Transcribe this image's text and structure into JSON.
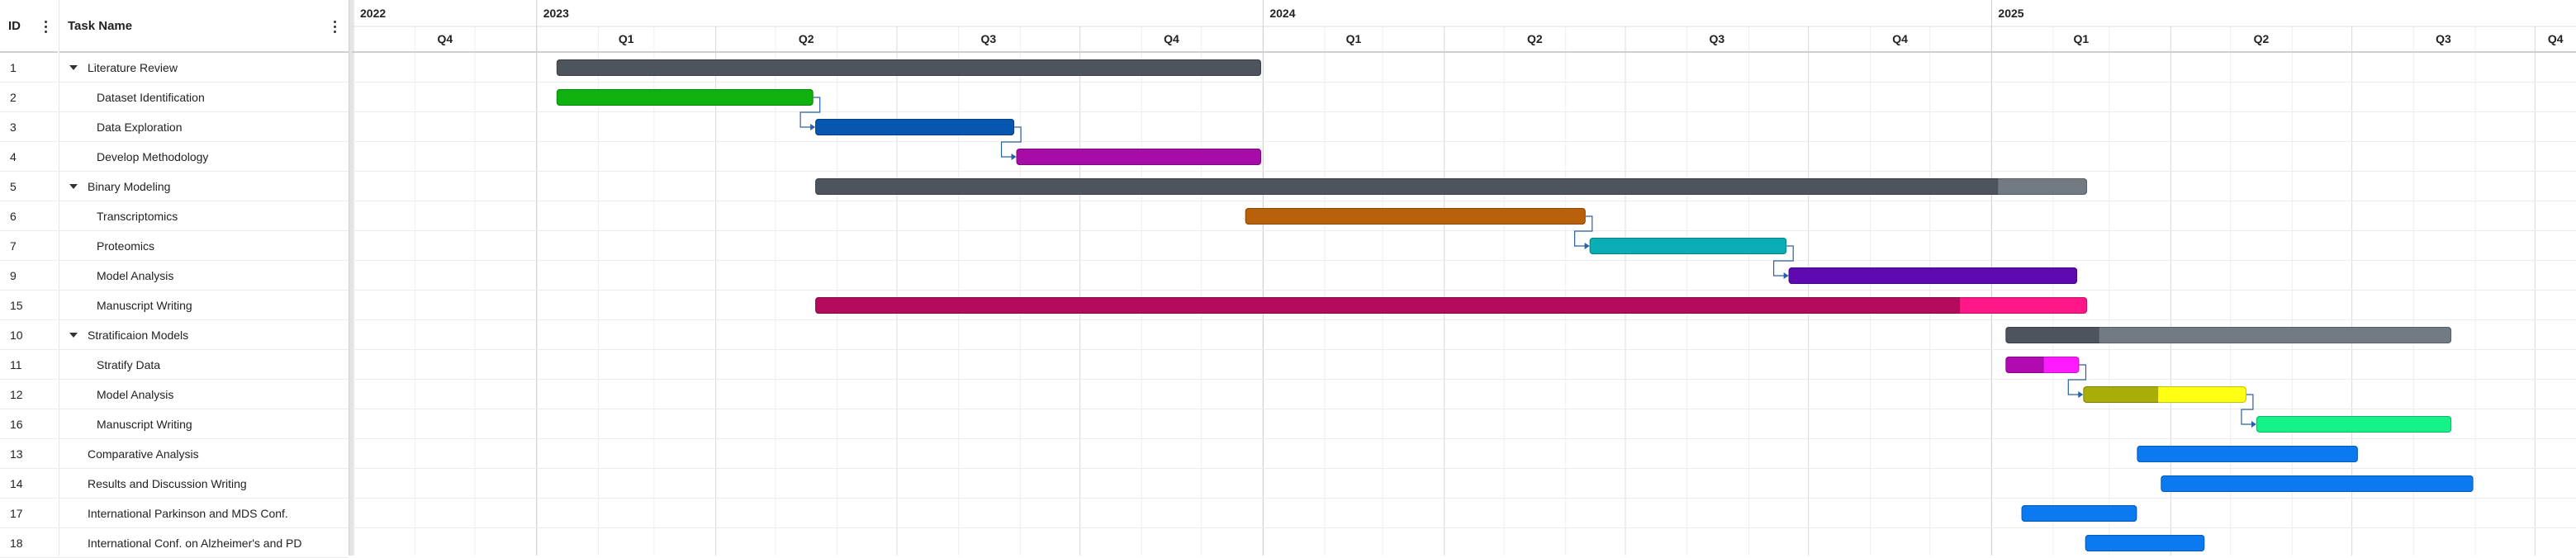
{
  "grid": {
    "id_header": "ID",
    "name_header": "Task Name",
    "rows": [
      {
        "id": "1",
        "name": "Literature Review",
        "level": 0,
        "expand": true
      },
      {
        "id": "2",
        "name": "Dataset Identification",
        "level": 1,
        "expand": false
      },
      {
        "id": "3",
        "name": "Data Exploration",
        "level": 1,
        "expand": false
      },
      {
        "id": "4",
        "name": "Develop Methodology",
        "level": 1,
        "expand": false
      },
      {
        "id": "5",
        "name": "Binary Modeling",
        "level": 0,
        "expand": true
      },
      {
        "id": "6",
        "name": "Transcriptomics",
        "level": 1,
        "expand": false
      },
      {
        "id": "7",
        "name": "Proteomics",
        "level": 1,
        "expand": false
      },
      {
        "id": "9",
        "name": "Model Analysis",
        "level": 1,
        "expand": false
      },
      {
        "id": "15",
        "name": "Manuscript Writing",
        "level": 1,
        "expand": false
      },
      {
        "id": "10",
        "name": "Stratificaion Models",
        "level": 0,
        "expand": true
      },
      {
        "id": "11",
        "name": "Stratify Data",
        "level": 1,
        "expand": false
      },
      {
        "id": "12",
        "name": "Model Analysis",
        "level": 1,
        "expand": false
      },
      {
        "id": "16",
        "name": "Manuscript Writing",
        "level": 1,
        "expand": false
      },
      {
        "id": "13",
        "name": "Comparative Analysis",
        "level": 0,
        "expand": false
      },
      {
        "id": "14",
        "name": "Results and Discussion Writing",
        "level": 0,
        "expand": false
      },
      {
        "id": "17",
        "name": "International Parkinson and MDS Conf.",
        "level": 0,
        "expand": false
      },
      {
        "id": "18",
        "name": "International Conf. on Alzheimer's and PD",
        "level": 0,
        "expand": false
      }
    ]
  },
  "timeline": {
    "start": "2022-10-01",
    "years": [
      {
        "label": "2022",
        "start": "2022-10-01",
        "end": "2023-01-01"
      },
      {
        "label": "2023",
        "start": "2023-01-01",
        "end": "2024-01-01"
      },
      {
        "label": "2024",
        "start": "2024-01-01",
        "end": "2025-01-01"
      },
      {
        "label": "2025",
        "start": "2025-01-01",
        "end": "2025-12-31"
      }
    ],
    "quarters": [
      {
        "label": "Q4",
        "start": "2022-10-01",
        "end": "2023-01-01"
      },
      {
        "label": "Q1",
        "start": "2023-01-01",
        "end": "2023-04-01"
      },
      {
        "label": "Q2",
        "start": "2023-04-01",
        "end": "2023-07-01"
      },
      {
        "label": "Q3",
        "start": "2023-07-01",
        "end": "2023-10-01"
      },
      {
        "label": "Q4",
        "start": "2023-10-01",
        "end": "2024-01-01"
      },
      {
        "label": "Q1",
        "start": "2024-01-01",
        "end": "2024-04-01"
      },
      {
        "label": "Q2",
        "start": "2024-04-01",
        "end": "2024-07-01"
      },
      {
        "label": "Q3",
        "start": "2024-07-01",
        "end": "2024-10-01"
      },
      {
        "label": "Q4",
        "start": "2024-10-01",
        "end": "2025-01-01"
      },
      {
        "label": "Q1",
        "start": "2025-01-01",
        "end": "2025-04-01"
      },
      {
        "label": "Q2",
        "start": "2025-04-01",
        "end": "2025-07-01"
      },
      {
        "label": "Q3",
        "start": "2025-07-01",
        "end": "2025-10-01"
      },
      {
        "label": "Q4",
        "start": "2025-10-01",
        "end": "2025-12-31"
      }
    ]
  },
  "bars": [
    {
      "row": 0,
      "start": "2023-01-11",
      "end": "2023-12-31",
      "color": "#4d545c",
      "progress": 1
    },
    {
      "row": 1,
      "start": "2023-01-11",
      "end": "2023-05-20",
      "color": "#0fb10f",
      "progress": 1
    },
    {
      "row": 2,
      "start": "2023-05-21",
      "end": "2023-08-29",
      "color": "#0756b0",
      "progress": 1
    },
    {
      "row": 3,
      "start": "2023-08-30",
      "end": "2023-12-31",
      "color": "#a80ca8",
      "progress": 1
    },
    {
      "row": 4,
      "start": "2023-05-21",
      "end": "2025-02-18",
      "color": "#4d545c",
      "light": "#737b82",
      "progress": 0.93
    },
    {
      "row": 5,
      "start": "2023-12-23",
      "end": "2024-06-11",
      "color": "#b8600a",
      "progress": 1
    },
    {
      "row": 6,
      "start": "2024-06-13",
      "end": "2024-09-20",
      "color": "#0aadb3",
      "progress": 1
    },
    {
      "row": 7,
      "start": "2024-09-21",
      "end": "2025-02-13",
      "color": "#5f0ab0",
      "progress": 1
    },
    {
      "row": 8,
      "start": "2023-05-21",
      "end": "2025-02-18",
      "color": "#b30a5c",
      "light": "#ff1787",
      "progress": 0.9
    },
    {
      "row": 9,
      "start": "2025-01-08",
      "end": "2025-08-20",
      "color": "#4d545c",
      "light": "#737b82",
      "progress": 0.21
    },
    {
      "row": 10,
      "start": "2025-01-08",
      "end": "2025-02-14",
      "color": "#b00ab0",
      "light": "#ff1bff",
      "progress": 0.52
    },
    {
      "row": 11,
      "start": "2025-02-16",
      "end": "2025-05-09",
      "color": "#a8ad09",
      "light": "#ffff14",
      "progress": 0.46
    },
    {
      "row": 12,
      "start": "2025-05-14",
      "end": "2025-08-20",
      "color": "#15f28a",
      "progress": 1
    },
    {
      "row": 13,
      "start": "2025-03-15",
      "end": "2025-07-04",
      "color": "#0b79f0",
      "progress": 1
    },
    {
      "row": 14,
      "start": "2025-03-27",
      "end": "2025-08-31",
      "color": "#0b79f0",
      "progress": 1
    },
    {
      "row": 15,
      "start": "2025-01-16",
      "end": "2025-03-15",
      "color": "#0b79f0",
      "progress": 1
    },
    {
      "row": 16,
      "start": "2025-02-17",
      "end": "2025-04-18",
      "color": "#0b79f0",
      "progress": 1
    }
  ],
  "dependencies": [
    {
      "from": 1,
      "to": 2
    },
    {
      "from": 2,
      "to": 3
    },
    {
      "from": 5,
      "to": 6
    },
    {
      "from": 6,
      "to": 7
    },
    {
      "from": 10,
      "to": 11
    },
    {
      "from": 11,
      "to": 12
    }
  ],
  "colors": {
    "connector": "#2a5fa8",
    "grid_line": "#ececec"
  }
}
